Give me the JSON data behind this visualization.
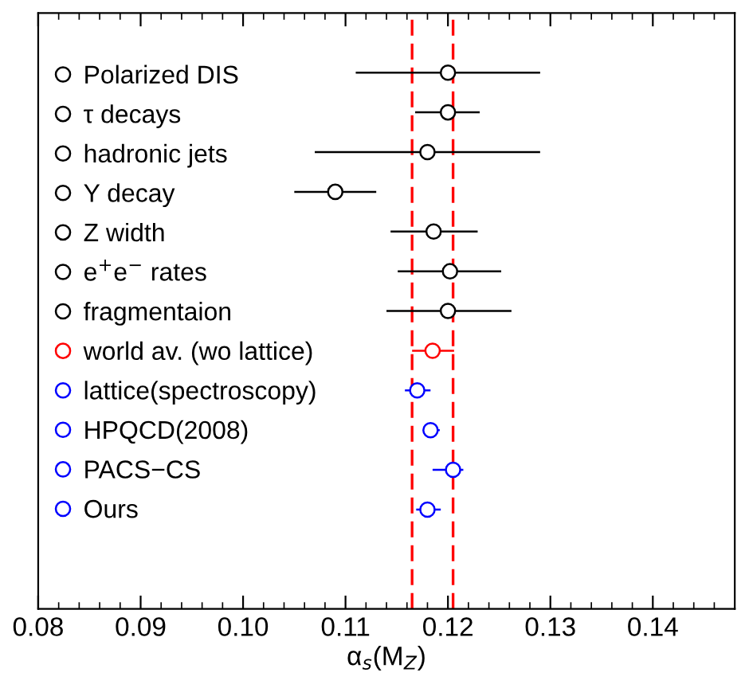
{
  "chart_data": {
    "type": "scatter",
    "orientation": "horizontal",
    "xlabel": "α$_{s}$(M$_{Z}$)",
    "xlim": [
      0.08,
      0.148
    ],
    "xticks": [
      {
        "value": 0.08,
        "label": "0.08"
      },
      {
        "value": 0.09,
        "label": "0.09"
      },
      {
        "value": 0.1,
        "label": "0.10"
      },
      {
        "value": 0.11,
        "label": "0.11"
      },
      {
        "value": 0.12,
        "label": "0.12"
      },
      {
        "value": 0.13,
        "label": "0.13"
      },
      {
        "value": 0.14,
        "label": "0.14"
      }
    ],
    "categories": [
      null,
      null,
      null,
      null,
      null,
      null,
      null,
      null,
      null,
      null,
      null,
      null,
      null,
      null,
      null
    ],
    "marker": "circle",
    "legend": "left",
    "ref_lines": [
      {
        "axis": "x",
        "value": 0.1165,
        "color": "#ff0000",
        "line_style": "dashed"
      },
      {
        "axis": "x",
        "value": 0.1205,
        "color": "#ff0000",
        "line_style": "dashed"
      }
    ],
    "series": [
      {
        "name": "Polarized DIS",
        "color": "#000000",
        "values": [
          null,
          0.12,
          null,
          null,
          null,
          null,
          null,
          null,
          null,
          null,
          null,
          null,
          null,
          null,
          null
        ],
        "errors": [
          null,
          [
            0.111,
            0.129
          ],
          null,
          null,
          null,
          null,
          null,
          null,
          null,
          null,
          null,
          null,
          null,
          null,
          null
        ]
      },
      {
        "name": "τ decays",
        "color": "#000000",
        "values": [
          null,
          null,
          0.12,
          null,
          null,
          null,
          null,
          null,
          null,
          null,
          null,
          null,
          null,
          null,
          null
        ],
        "errors": [
          null,
          null,
          [
            0.1168,
            0.1231
          ],
          null,
          null,
          null,
          null,
          null,
          null,
          null,
          null,
          null,
          null,
          null,
          null
        ]
      },
      {
        "name": "hadronic jets",
        "color": "#000000",
        "values": [
          null,
          null,
          null,
          0.118,
          null,
          null,
          null,
          null,
          null,
          null,
          null,
          null,
          null,
          null,
          null
        ],
        "errors": [
          null,
          null,
          null,
          [
            0.107,
            0.129
          ],
          null,
          null,
          null,
          null,
          null,
          null,
          null,
          null,
          null,
          null,
          null
        ]
      },
      {
        "name": "Υ decay",
        "color": "#000000",
        "values": [
          null,
          null,
          null,
          null,
          0.109,
          null,
          null,
          null,
          null,
          null,
          null,
          null,
          null,
          null,
          null
        ],
        "errors": [
          null,
          null,
          null,
          null,
          [
            0.105,
            0.113
          ],
          null,
          null,
          null,
          null,
          null,
          null,
          null,
          null,
          null,
          null
        ]
      },
      {
        "name": "Z width",
        "color": "#000000",
        "values": [
          null,
          null,
          null,
          null,
          null,
          0.1186,
          null,
          null,
          null,
          null,
          null,
          null,
          null,
          null,
          null
        ],
        "errors": [
          null,
          null,
          null,
          null,
          null,
          [
            0.1144,
            0.1229
          ],
          null,
          null,
          null,
          null,
          null,
          null,
          null,
          null,
          null
        ]
      },
      {
        "name": "e$^{+}$e$^{−}$ rates",
        "color": "#000000",
        "values": [
          null,
          null,
          null,
          null,
          null,
          null,
          0.1202,
          null,
          null,
          null,
          null,
          null,
          null,
          null,
          null
        ],
        "errors": [
          null,
          null,
          null,
          null,
          null,
          null,
          [
            0.1151,
            0.1252
          ],
          null,
          null,
          null,
          null,
          null,
          null,
          null,
          null
        ]
      },
      {
        "name": "fragmentaion",
        "color": "#000000",
        "values": [
          null,
          null,
          null,
          null,
          null,
          null,
          null,
          0.12,
          null,
          null,
          null,
          null,
          null,
          null,
          null
        ],
        "errors": [
          null,
          null,
          null,
          null,
          null,
          null,
          null,
          [
            0.114,
            0.1262
          ],
          null,
          null,
          null,
          null,
          null,
          null,
          null
        ]
      },
      {
        "name": "world av. (wo lattice)",
        "color": "#ff0000",
        "values": [
          null,
          null,
          null,
          null,
          null,
          null,
          null,
          null,
          0.1185,
          null,
          null,
          null,
          null,
          null,
          null
        ],
        "errors": [
          null,
          null,
          null,
          null,
          null,
          null,
          null,
          null,
          [
            0.1165,
            0.1206
          ],
          null,
          null,
          null,
          null,
          null,
          null
        ]
      },
      {
        "name": "lattice(spectroscopy)",
        "color": "#0000ff",
        "values": [
          null,
          null,
          null,
          null,
          null,
          null,
          null,
          null,
          null,
          0.117,
          null,
          null,
          null,
          null,
          null
        ],
        "errors": [
          null,
          null,
          null,
          null,
          null,
          null,
          null,
          null,
          null,
          [
            0.1158,
            0.1183
          ],
          null,
          null,
          null,
          null,
          null
        ]
      },
      {
        "name": "HPQCD(2008)",
        "color": "#0000ff",
        "values": [
          null,
          null,
          null,
          null,
          null,
          null,
          null,
          null,
          null,
          null,
          0.1183,
          null,
          null,
          null,
          null
        ],
        "errors": [
          null,
          null,
          null,
          null,
          null,
          null,
          null,
          null,
          null,
          null,
          [
            0.1176,
            0.1192
          ],
          null,
          null,
          null,
          null
        ]
      },
      {
        "name": "PACS−CS",
        "color": "#0000ff",
        "values": [
          null,
          null,
          null,
          null,
          null,
          null,
          null,
          null,
          null,
          null,
          null,
          0.1205,
          null,
          null,
          null
        ],
        "errors": [
          null,
          null,
          null,
          null,
          null,
          null,
          null,
          null,
          null,
          null,
          null,
          [
            0.1185,
            0.1215
          ],
          null,
          null,
          null
        ]
      },
      {
        "name": "Ours",
        "color": "#0000ff",
        "values": [
          null,
          null,
          null,
          null,
          null,
          null,
          null,
          null,
          null,
          null,
          null,
          null,
          0.118,
          null,
          null
        ],
        "errors": [
          null,
          null,
          null,
          null,
          null,
          null,
          null,
          null,
          null,
          null,
          null,
          null,
          [
            0.1169,
            0.1193
          ],
          null,
          null
        ]
      }
    ]
  }
}
